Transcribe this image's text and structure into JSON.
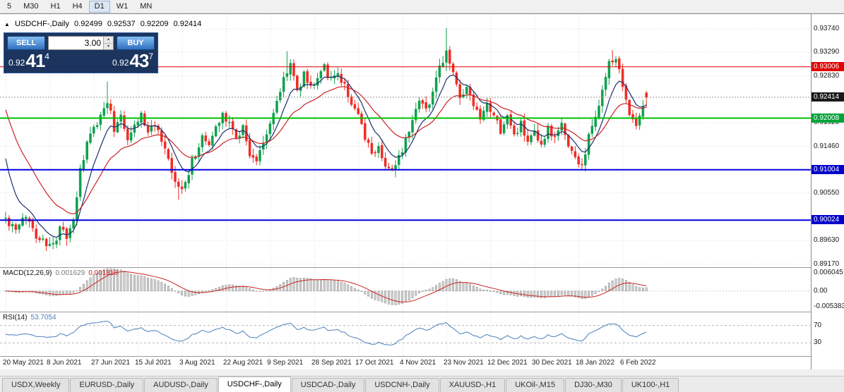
{
  "toolbar": {
    "timeframes": [
      "5",
      "M30",
      "H1",
      "H4",
      "D1",
      "W1",
      "MN"
    ],
    "active": "D1"
  },
  "chart": {
    "collapse_icon": "▲",
    "symbol_period": "USDCHF-,Daily",
    "ohlc": {
      "open": "0.92499",
      "high": "0.92537",
      "low": "0.92209",
      "close": "0.92414"
    }
  },
  "trade_panel": {
    "sell_label": "SELL",
    "buy_label": "BUY",
    "volume": "3.00",
    "spin_up": "▴",
    "spin_down": "▾",
    "bid": {
      "big": "0.92",
      "pips": "41",
      "point": "4"
    },
    "ask": {
      "big": "0.92",
      "pips": "43",
      "point": "7"
    }
  },
  "price_axis": {
    "labels": [
      {
        "text": "0.93740",
        "price": 0.9374
      },
      {
        "text": "0.93290",
        "price": 0.9329
      },
      {
        "text": "0.92830",
        "price": 0.9283
      },
      {
        "text": "0.91920",
        "price": 0.9192
      },
      {
        "text": "0.91460",
        "price": 0.9146
      },
      {
        "text": "0.90550",
        "price": 0.9055
      },
      {
        "text": "0.89630",
        "price": 0.8963
      },
      {
        "text": "0.89170",
        "price": 0.8917
      }
    ],
    "badges": [
      {
        "text": "0.93006",
        "price": 0.93006,
        "color": "#e00000"
      },
      {
        "text": "0.92414",
        "price": 0.92414,
        "color": "#1a1a1a"
      },
      {
        "text": "0.92008",
        "price": 0.92008,
        "color": "#00a33a"
      },
      {
        "text": "0.91004",
        "price": 0.91004,
        "color": "#0000cc"
      },
      {
        "text": "0.90024",
        "price": 0.90024,
        "color": "#0000cc"
      }
    ]
  },
  "indicators": {
    "macd": {
      "label": "MACD(12,26,9)",
      "value_main": "0.001629",
      "value_signal": "0.001818",
      "axis_max": "0.006045",
      "axis_zero": "0.00",
      "axis_min": "-0.005383"
    },
    "rsi": {
      "label": "RSI(14)",
      "value": "53.7054",
      "level_labels": [
        "70",
        "30"
      ]
    }
  },
  "tabs": {
    "items": [
      "USDX,Weekly",
      "EURUSD-,Daily",
      "AUDUSD-,Daily",
      "USDCHF-,Daily",
      "USDCAD-,Daily",
      "USDCNH-,Daily",
      "XAUUSD-,H1",
      "UKOil-,M15",
      "DJ30-,M30",
      "UK100-,H1"
    ],
    "active_index": 3
  },
  "chart_data": {
    "type": "candlestick",
    "title": "USDCHF-,Daily",
    "price_range": [
      0.8911,
      0.9403
    ],
    "bar_count": 190,
    "seed": 42,
    "noise": 0.0017,
    "close_anchors": [
      [
        0,
        0.9005
      ],
      [
        3,
        0.898
      ],
      [
        6,
        0.9012
      ],
      [
        9,
        0.8975
      ],
      [
        12,
        0.8956
      ],
      [
        14,
        0.895
      ],
      [
        16,
        0.8988
      ],
      [
        18,
        0.8966
      ],
      [
        20,
        0.9005
      ],
      [
        22,
        0.9095
      ],
      [
        24,
        0.915
      ],
      [
        26,
        0.918
      ],
      [
        28,
        0.9205
      ],
      [
        30,
        0.9238
      ],
      [
        32,
        0.918
      ],
      [
        34,
        0.9212
      ],
      [
        36,
        0.916
      ],
      [
        38,
        0.9188
      ],
      [
        40,
        0.9208
      ],
      [
        42,
        0.9172
      ],
      [
        44,
        0.9192
      ],
      [
        46,
        0.915
      ],
      [
        48,
        0.9118
      ],
      [
        50,
        0.9072
      ],
      [
        52,
        0.906
      ],
      [
        54,
        0.9098
      ],
      [
        56,
        0.9132
      ],
      [
        58,
        0.9162
      ],
      [
        60,
        0.915
      ],
      [
        62,
        0.9182
      ],
      [
        64,
        0.9212
      ],
      [
        66,
        0.9192
      ],
      [
        68,
        0.9162
      ],
      [
        70,
        0.9186
      ],
      [
        72,
        0.9132
      ],
      [
        74,
        0.9116
      ],
      [
        76,
        0.9152
      ],
      [
        78,
        0.9192
      ],
      [
        80,
        0.9232
      ],
      [
        82,
        0.9278
      ],
      [
        84,
        0.9308
      ],
      [
        86,
        0.9252
      ],
      [
        88,
        0.9285
      ],
      [
        90,
        0.9262
      ],
      [
        92,
        0.9282
      ],
      [
        94,
        0.9302
      ],
      [
        96,
        0.9272
      ],
      [
        98,
        0.929
      ],
      [
        100,
        0.9262
      ],
      [
        102,
        0.9232
      ],
      [
        104,
        0.9202
      ],
      [
        106,
        0.9162
      ],
      [
        108,
        0.9132
      ],
      [
        110,
        0.9146
      ],
      [
        112,
        0.9112
      ],
      [
        114,
        0.9096
      ],
      [
        116,
        0.9122
      ],
      [
        118,
        0.9162
      ],
      [
        120,
        0.9202
      ],
      [
        122,
        0.9242
      ],
      [
        124,
        0.9218
      ],
      [
        126,
        0.9252
      ],
      [
        128,
        0.9295
      ],
      [
        130,
        0.9332
      ],
      [
        132,
        0.9288
      ],
      [
        134,
        0.9238
      ],
      [
        136,
        0.9258
      ],
      [
        138,
        0.9222
      ],
      [
        140,
        0.9196
      ],
      [
        142,
        0.9222
      ],
      [
        144,
        0.9202
      ],
      [
        146,
        0.9178
      ],
      [
        148,
        0.9202
      ],
      [
        150,
        0.9168
      ],
      [
        152,
        0.9188
      ],
      [
        154,
        0.9152
      ],
      [
        156,
        0.9168
      ],
      [
        158,
        0.9142
      ],
      [
        160,
        0.9178
      ],
      [
        162,
        0.9158
      ],
      [
        164,
        0.9192
      ],
      [
        166,
        0.9148
      ],
      [
        168,
        0.9122
      ],
      [
        170,
        0.9108
      ],
      [
        172,
        0.9162
      ],
      [
        174,
        0.9205
      ],
      [
        176,
        0.9255
      ],
      [
        178,
        0.9305
      ],
      [
        180,
        0.9318
      ],
      [
        182,
        0.9262
      ],
      [
        184,
        0.9215
      ],
      [
        186,
        0.9188
      ],
      [
        188,
        0.9228
      ],
      [
        189,
        0.9241
      ]
    ],
    "overrides": [
      {
        "i": 14,
        "l": 0.8946
      },
      {
        "i": 30,
        "h": 0.9272
      },
      {
        "i": 51,
        "l": 0.9042
      },
      {
        "i": 83,
        "h": 0.9331
      },
      {
        "i": 115,
        "l": 0.9086
      },
      {
        "i": 130,
        "h": 0.9376,
        "l": 0.9292
      },
      {
        "i": 170,
        "l": 0.9099
      },
      {
        "i": 179,
        "h": 0.9333
      },
      {
        "i": 189,
        "o": 0.92499,
        "h": 0.92537,
        "l": 0.92209,
        "c": 0.92414
      }
    ],
    "up_color": "#0fa04e",
    "down_color": "#ee2c24",
    "moving_averages": [
      {
        "period": 8,
        "seed_value": 0.9155,
        "color": "#1c2f6e"
      },
      {
        "period": 21,
        "seed_value": 0.9238,
        "color": "#cc2222"
      }
    ],
    "hlines": [
      {
        "price": 0.93006,
        "color": "#e00000",
        "width": 1
      },
      {
        "price": 0.92008,
        "color": "#00c000",
        "width": 2
      },
      {
        "price": 0.91004,
        "color": "#0000e0",
        "width": 2
      },
      {
        "price": 0.90024,
        "color": "#0000e0",
        "width": 2
      },
      {
        "price": 0.92414,
        "color": "#999999",
        "width": 1,
        "dashed": true
      }
    ],
    "date_ticks": [
      {
        "bar": 0,
        "label": "20 May 2021"
      },
      {
        "bar": 13,
        "label": "8 Jun 2021"
      },
      {
        "bar": 26,
        "label": "27 Jun 2021"
      },
      {
        "bar": 39,
        "label": "15 Jul 2021"
      },
      {
        "bar": 52,
        "label": "3 Aug 2021"
      },
      {
        "bar": 65,
        "label": "22 Aug 2021"
      },
      {
        "bar": 78,
        "label": "9 Sep 2021"
      },
      {
        "bar": 91,
        "label": "28 Sep 2021"
      },
      {
        "bar": 104,
        "label": "17 Oct 2021"
      },
      {
        "bar": 117,
        "label": "4 Nov 2021"
      },
      {
        "bar": 130,
        "label": "23 Nov 2021"
      },
      {
        "bar": 143,
        "label": "12 Dec 2021"
      },
      {
        "bar": 156,
        "label": "30 Dec 2021"
      },
      {
        "bar": 169,
        "label": "18 Jan 2022"
      },
      {
        "bar": 182,
        "label": "6 Feb 2022"
      }
    ],
    "macd": {
      "fast": 12,
      "slow": 26,
      "signal": 9,
      "scale_max": 0.006045,
      "scale_min": -0.005383,
      "hist_fill": "#d0d0d0",
      "hist_stroke": "#8a8a8a",
      "signal_color": "#cc2222"
    },
    "rsi": {
      "period": 14,
      "levels": [
        70,
        30
      ],
      "color": "#4a7ebb"
    }
  }
}
